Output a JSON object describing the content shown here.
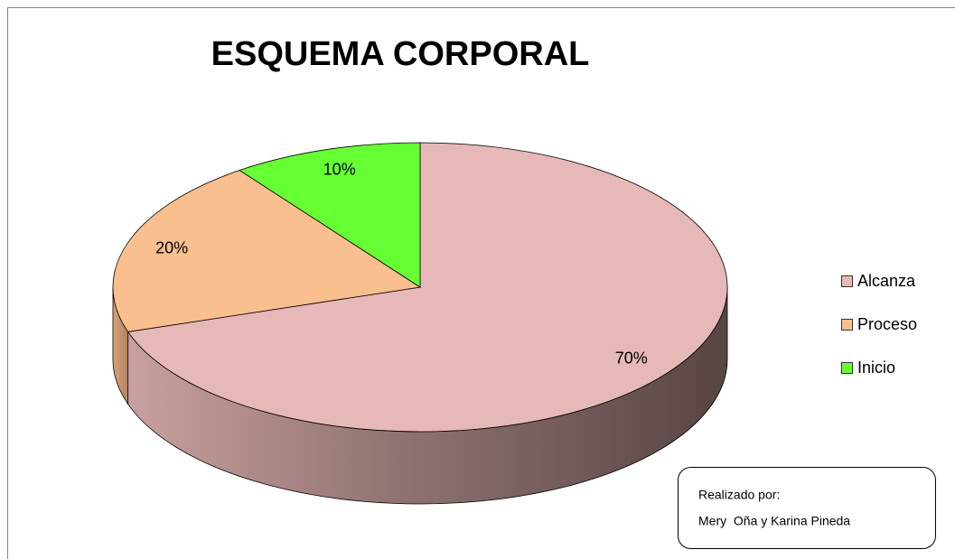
{
  "chart_data": {
    "type": "pie",
    "title": "ESQUEMA CORPORAL",
    "categories": [
      "Alcanza",
      "Proceso",
      "Inicio"
    ],
    "values": [
      70,
      20,
      10
    ],
    "value_labels": [
      "70%",
      "20%",
      "10%"
    ],
    "colors": [
      "#e6b8b7",
      "#fabf8f",
      "#66ff33"
    ],
    "legend": "right",
    "annotation": [
      "Realizado por:",
      "Mery  Oña y Karina Pineda"
    ]
  }
}
